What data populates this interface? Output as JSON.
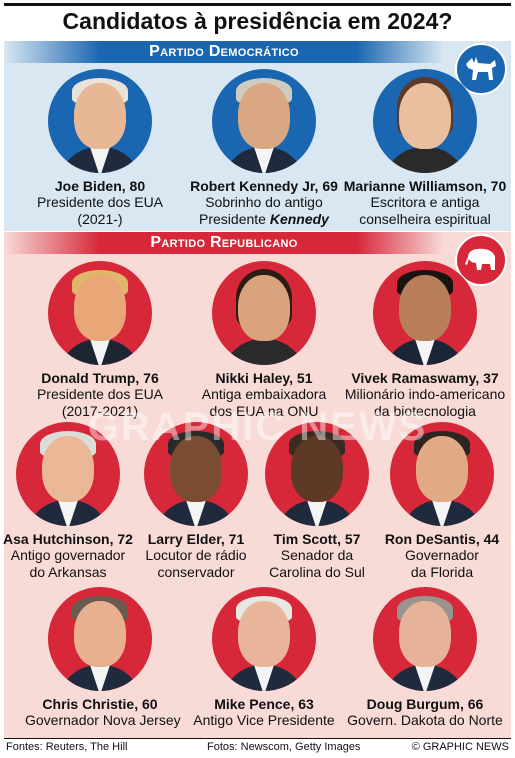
{
  "title": "Candidatos à presidência em 2024?",
  "democratic": {
    "label": "Partido Democrático",
    "icon": "donkey-icon",
    "color": "#1a66b0",
    "candidates": [
      {
        "name": "Joe Biden, 80",
        "desc1": "Presidente dos EUA",
        "desc2": "(2021-)"
      },
      {
        "name": "Robert Kennedy Jr, 69",
        "desc1": "Sobrinho do antigo",
        "desc2a": "Presidente ",
        "desc2b": "Kennedy"
      },
      {
        "name": "Marianne Williamson, 70",
        "desc1": "Escritora e antiga",
        "desc2": "conselheira espiritual"
      }
    ]
  },
  "republican": {
    "label": "Partido Republicano",
    "icon": "elephant-icon",
    "color": "#d62839",
    "candidates": [
      {
        "name": "Donald Trump, 76",
        "desc1": "Presidente dos EUA",
        "desc2": "(2017-2021)"
      },
      {
        "name": "Nikki Haley, 51",
        "desc1": "Antiga embaixadora",
        "desc2": "dos EUA na ONU"
      },
      {
        "name": "Vivek Ramaswamy, 37",
        "desc1": "Milionário indo-americano",
        "desc2": "da biotecnologia"
      },
      {
        "name": "Asa Hutchinson, 72",
        "desc1": "Antigo governador",
        "desc2": "do Arkansas"
      },
      {
        "name": "Larry Elder, 71",
        "desc1": "Locutor de rádio",
        "desc2": "conservador"
      },
      {
        "name": "Tim Scott, 57",
        "desc1": "Senador da",
        "desc2": "Carolina do Sul"
      },
      {
        "name": "Ron DeSantis, 44",
        "desc1": "Governador",
        "desc2": "da Florida"
      },
      {
        "name": "Chris Christie, 60",
        "desc1": "Governador Nova Jersey"
      },
      {
        "name": "Mike Pence, 63",
        "desc1": "Antigo Vice Presidente"
      },
      {
        "name": "Doug Burgum, 66",
        "desc1": "Govern. Dakota do Norte"
      }
    ]
  },
  "watermark": "GRAPHIC NEWS",
  "footer": {
    "sources": "Fontes: Reuters, The Hill",
    "photos": "Fotos: Newscom, Getty Images",
    "credit": "© GRAPHIC NEWS"
  }
}
